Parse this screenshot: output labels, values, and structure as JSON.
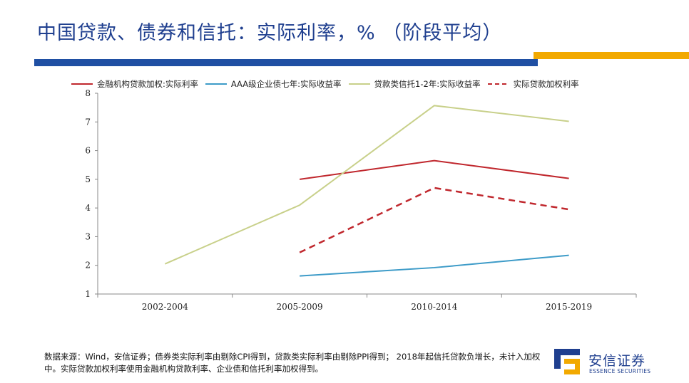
{
  "title": "中国贷款、债券和信托：实际利率，% （阶段平均）",
  "footnote": "数据来源：Wind，安信证券；债券类实际利率由剔除CPI得到，贷款类实际利率由剔除PPI得到； 2018年起信托贷款负增长，未计入加权中。实际贷款加权利率使用金融机构贷款利率、企业债和信托利率加权得到。",
  "logo": {
    "name": "安信证券",
    "english": "ESSENCE SECURITIES",
    "colors": {
      "blue": "#1f3f8f",
      "gold": "#f2a900"
    }
  },
  "accent_colors": {
    "title_bar": "#1f4fa3",
    "gold_bar": "#f2a900"
  },
  "chart_data": {
    "type": "line",
    "categories": [
      "2002-2004",
      "2005-2009",
      "2010-2014",
      "2015-2019"
    ],
    "ylim": [
      1,
      8
    ],
    "yticks": [
      1,
      2,
      3,
      4,
      5,
      6,
      7,
      8
    ],
    "grid": false,
    "legend_position": "top",
    "series": [
      {
        "name": "金融机构贷款加权:实际利率",
        "color": "#c0272d",
        "dashed": false,
        "values": [
          null,
          5.0,
          5.65,
          5.03
        ]
      },
      {
        "name": "AAA级企业债七年:实际收益率",
        "color": "#3d9bc8",
        "dashed": false,
        "values": [
          null,
          1.63,
          1.92,
          2.35
        ]
      },
      {
        "name": "贷款类信托1-2年:实际收益率",
        "color": "#c8d08a",
        "dashed": false,
        "values": [
          2.05,
          4.1,
          7.57,
          7.02
        ]
      },
      {
        "name": "实际贷款加权利率",
        "color": "#c0272d",
        "dashed": true,
        "values": [
          null,
          2.45,
          4.7,
          3.95
        ]
      }
    ]
  }
}
